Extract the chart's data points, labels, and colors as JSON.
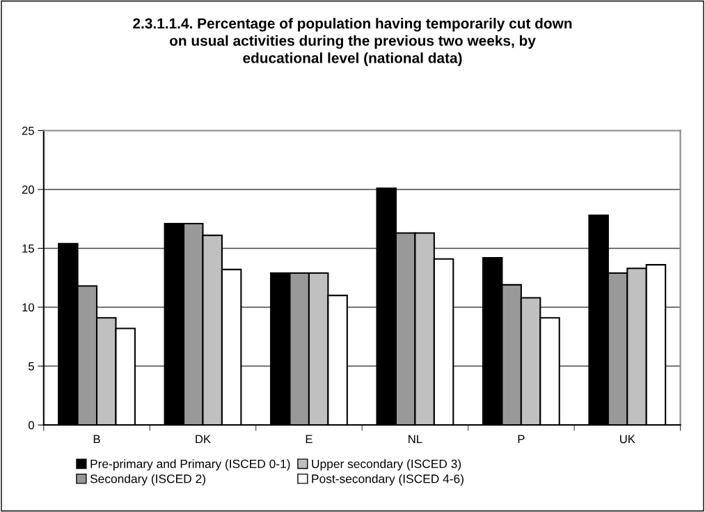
{
  "chart_data": {
    "type": "bar",
    "title": "2.3.1.1.4. Percentage of population having temporarily cut down\non usual activities during the previous two weeks, by\neducational level (national data)",
    "categories": [
      "B",
      "DK",
      "E",
      "NL",
      "P",
      "UK"
    ],
    "series": [
      {
        "name": "Pre-primary and Primary (ISCED 0-1)",
        "color": "#000000",
        "values": [
          15.4,
          17.1,
          12.9,
          20.1,
          14.2,
          17.8
        ]
      },
      {
        "name": "Secondary (ISCED 2)",
        "color": "#999999",
        "values": [
          11.8,
          17.1,
          12.9,
          16.3,
          11.9,
          12.9
        ]
      },
      {
        "name": "Upper secondary (ISCED 3)",
        "color": "#c0c0c0",
        "values": [
          9.1,
          16.1,
          12.9,
          16.3,
          10.8,
          13.3
        ]
      },
      {
        "name": "Post-secondary (ISCED 4-6)",
        "color": "#ffffff",
        "values": [
          8.2,
          13.2,
          11.0,
          14.1,
          9.1,
          13.6
        ]
      }
    ],
    "ylim": [
      0,
      25
    ],
    "yticks": [
      0,
      5,
      10,
      15,
      20,
      25
    ],
    "grid": "y",
    "legend": "bottom"
  }
}
